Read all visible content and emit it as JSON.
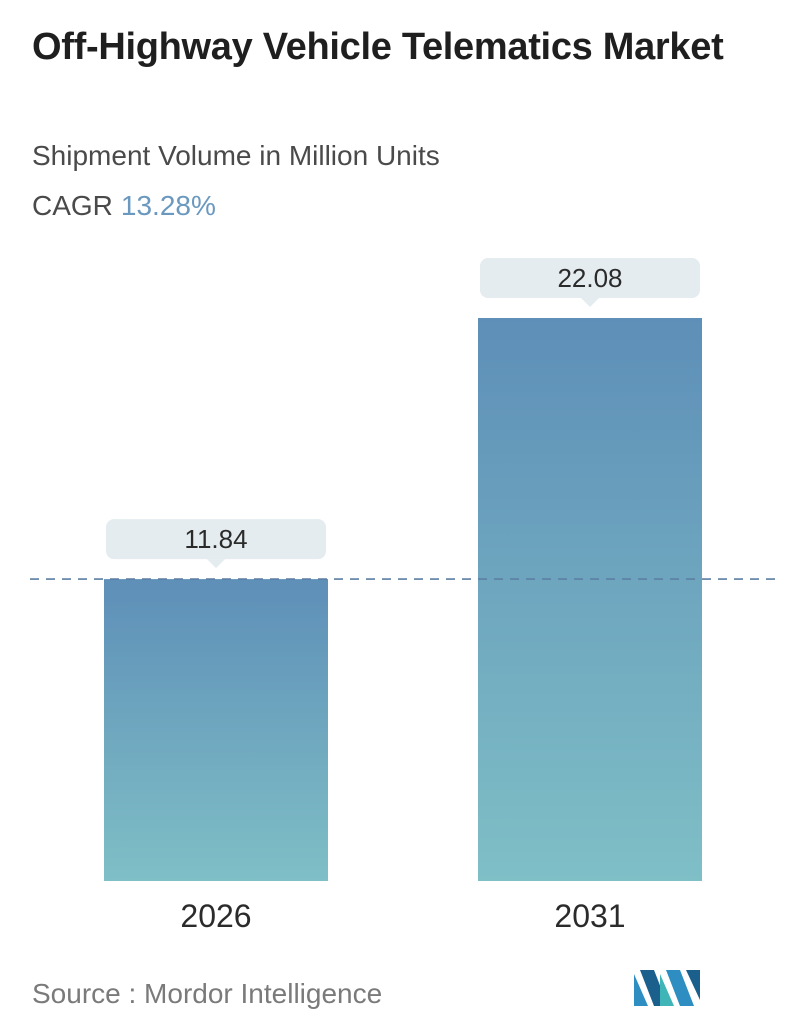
{
  "header": {
    "title": "Off-Highway Vehicle Telematics Market",
    "subtitle": "Shipment Volume in Million Units",
    "cagr_label": "CAGR",
    "cagr_value": "13.28%"
  },
  "chart_data": {
    "type": "bar",
    "categories": [
      "2026",
      "2031"
    ],
    "values": [
      11.84,
      22.08
    ],
    "value_labels": [
      "11.84",
      "22.08"
    ],
    "title": "Off-Highway Vehicle Telematics Market",
    "subtitle": "Shipment Volume in Million Units",
    "ylim": [
      0,
      22.08
    ],
    "grid": false,
    "reference_line": "dashed line at 2026 value",
    "colors": {
      "bar_top": "#5e8fb8",
      "bar_bottom": "#7fbfc6",
      "label_bg": "#e4ecef",
      "dash": "#5c7fa3",
      "cagr": "#6a98bf"
    }
  },
  "footer": {
    "source": "Source :  Mordor Intelligence",
    "logo_icon": "mordor-intelligence-logo-icon"
  }
}
